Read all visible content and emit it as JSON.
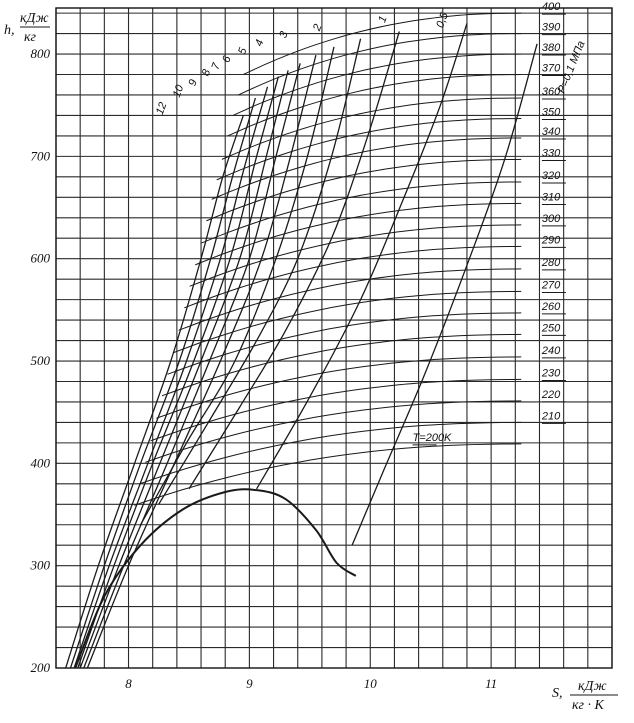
{
  "chart_data": {
    "type": "line",
    "title": "",
    "xlabel": "S, кДж/кг·К",
    "xlabel_parts": {
      "symbol": "S,",
      "num": "кДж",
      "den": "кг · К"
    },
    "ylabel": "h, кДж/кг",
    "ylabel_parts": {
      "symbol": "h,",
      "num": "кДж",
      "den": "кг"
    },
    "xlim": [
      7.4,
      12.0
    ],
    "ylim": [
      200,
      845
    ],
    "x_ticks": [
      8,
      9,
      10,
      11
    ],
    "x_tick_labels": [
      "8",
      "9",
      "10",
      "11"
    ],
    "y_ticks": [
      200,
      300,
      400,
      500,
      600,
      700,
      800
    ],
    "y_tick_labels": [
      "200",
      "300",
      "400",
      "500",
      "600",
      "700",
      "800"
    ],
    "grid": true,
    "pressure_unit_label": "P=0,1 МПа",
    "isobars": [
      {
        "label": "12",
        "s_label": 8.28,
        "h_label": 740,
        "points": [
          [
            7.48,
            200
          ],
          [
            7.75,
            300
          ],
          [
            8.05,
            400
          ],
          [
            8.35,
            500
          ],
          [
            8.6,
            600
          ],
          [
            8.78,
            680
          ],
          [
            8.95,
            740
          ]
        ]
      },
      {
        "label": "10",
        "s_label": 8.42,
        "h_label": 757,
        "points": [
          [
            7.52,
            200
          ],
          [
            7.8,
            300
          ],
          [
            8.1,
            400
          ],
          [
            8.42,
            500
          ],
          [
            8.68,
            600
          ],
          [
            8.86,
            680
          ],
          [
            9.05,
            757
          ]
        ]
      },
      {
        "label": "9",
        "s_label": 8.55,
        "h_label": 768,
        "points": [
          [
            7.55,
            200
          ],
          [
            7.84,
            300
          ],
          [
            8.16,
            400
          ],
          [
            8.48,
            500
          ],
          [
            8.76,
            600
          ],
          [
            8.96,
            690
          ],
          [
            9.15,
            768
          ]
        ]
      },
      {
        "label": "8",
        "s_label": 8.66,
        "h_label": 778,
        "points": [
          [
            7.58,
            200
          ],
          [
            7.88,
            300
          ],
          [
            8.2,
            400
          ],
          [
            8.54,
            500
          ],
          [
            8.84,
            600
          ],
          [
            9.06,
            700
          ],
          [
            9.24,
            778
          ]
        ]
      },
      {
        "label": "7",
        "s_label": 8.74,
        "h_label": 784,
        "points": [
          [
            7.6,
            200
          ],
          [
            7.92,
            300
          ],
          [
            8.26,
            400
          ],
          [
            8.6,
            500
          ],
          [
            8.92,
            600
          ],
          [
            9.14,
            700
          ],
          [
            9.32,
            784
          ]
        ]
      },
      {
        "label": "6",
        "s_label": 8.83,
        "h_label": 791,
        "points": [
          [
            7.63,
            200
          ],
          [
            7.96,
            300
          ],
          [
            8.32,
            400
          ],
          [
            8.67,
            500
          ],
          [
            9.0,
            600
          ],
          [
            9.22,
            700
          ],
          [
            9.42,
            791
          ]
        ]
      },
      {
        "label": "5",
        "s_label": 8.96,
        "h_label": 799,
        "points": [
          [
            7.66,
            200
          ],
          [
            8.0,
            300
          ],
          [
            8.38,
            400
          ],
          [
            8.76,
            500
          ],
          [
            9.1,
            600
          ],
          [
            9.34,
            700
          ],
          [
            9.55,
            799
          ]
        ]
      },
      {
        "label": "4",
        "s_label": 9.1,
        "h_label": 807,
        "points": [
          [
            8.1,
            340
          ],
          [
            8.48,
            420
          ],
          [
            8.88,
            500
          ],
          [
            9.22,
            600
          ],
          [
            9.48,
            700
          ],
          [
            9.7,
            807
          ]
        ]
      },
      {
        "label": "3",
        "s_label": 9.3,
        "h_label": 815,
        "points": [
          [
            8.25,
            360
          ],
          [
            8.66,
            440
          ],
          [
            9.06,
            520
          ],
          [
            9.4,
            600
          ],
          [
            9.68,
            700
          ],
          [
            9.92,
            815
          ]
        ]
      },
      {
        "label": "2",
        "s_label": 9.58,
        "h_label": 822,
        "points": [
          [
            8.5,
            375
          ],
          [
            8.92,
            455
          ],
          [
            9.3,
            530
          ],
          [
            9.68,
            620
          ],
          [
            9.98,
            720
          ],
          [
            10.24,
            822
          ]
        ]
      },
      {
        "label": "1",
        "s_label": 10.12,
        "h_label": 830,
        "points": [
          [
            9.06,
            375
          ],
          [
            9.5,
            465
          ],
          [
            9.92,
            560
          ],
          [
            10.28,
            660
          ],
          [
            10.58,
            750
          ],
          [
            10.8,
            830
          ]
        ]
      },
      {
        "label": "0,5",
        "s_label": 10.6,
        "h_label": 825,
        "points": [
          [
            9.85,
            320
          ],
          [
            10.1,
            390
          ],
          [
            10.46,
            490
          ],
          [
            10.82,
            600
          ],
          [
            11.12,
            700
          ],
          [
            11.38,
            810
          ]
        ]
      }
    ],
    "saturation_curve": {
      "points": [
        [
          7.56,
          200
        ],
        [
          7.8,
          270
        ],
        [
          8.1,
          320
        ],
        [
          8.45,
          355
        ],
        [
          8.8,
          372
        ],
        [
          9.05,
          374
        ],
        [
          9.3,
          365
        ],
        [
          9.55,
          335
        ],
        [
          9.72,
          303
        ],
        [
          9.88,
          290
        ]
      ]
    },
    "isotherms": [
      {
        "label": "400",
        "h": 840
      },
      {
        "label": "390",
        "h": 820
      },
      {
        "label": "380",
        "h": 800
      },
      {
        "label": "370",
        "h": 780
      },
      {
        "label": "360",
        "h": 757
      },
      {
        "label": "350",
        "h": 737
      },
      {
        "label": "340",
        "h": 718
      },
      {
        "label": "330",
        "h": 697
      },
      {
        "label": "320",
        "h": 675
      },
      {
        "label": "310",
        "h": 654
      },
      {
        "label": "300",
        "h": 633
      },
      {
        "label": "290",
        "h": 612
      },
      {
        "label": "280",
        "h": 590
      },
      {
        "label": "270",
        "h": 568
      },
      {
        "label": "260",
        "h": 547
      },
      {
        "label": "250",
        "h": 526
      },
      {
        "label": "240",
        "h": 504
      },
      {
        "label": "230",
        "h": 482
      },
      {
        "label": "220",
        "h": 461
      },
      {
        "label": "210",
        "h": 440
      },
      {
        "label": "T=200K",
        "h": 419
      }
    ],
    "vertical_grid_step": 0.2,
    "horizontal_grid_step": 20
  }
}
